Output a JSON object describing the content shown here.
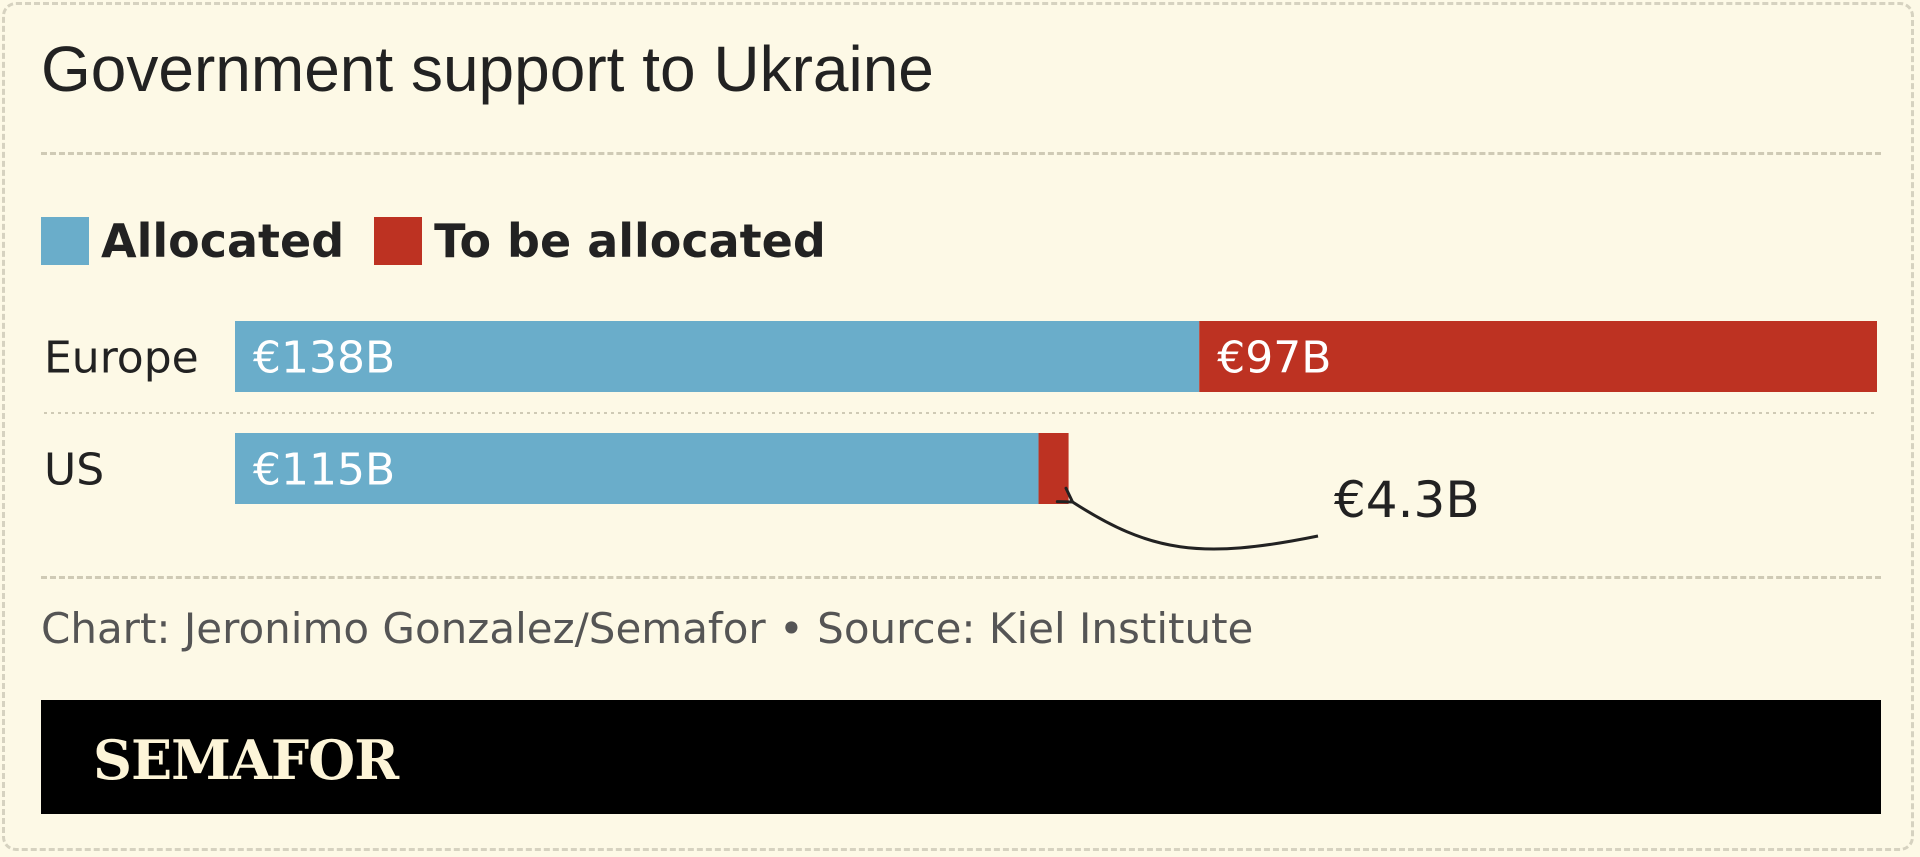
{
  "title": "Government support to Ukraine",
  "credit": "Chart: Jeronimo Gonzalez/Semafor • Source: Kiel Institute",
  "brand": "SEMAFOR",
  "colors": {
    "allocated": "#6aadca",
    "to_be_allocated": "#bd3222",
    "background": "#fdf9e6",
    "footer": "#000000"
  },
  "chart_data": {
    "type": "bar",
    "orientation": "horizontal",
    "stacked": true,
    "categories": [
      "Europe",
      "US"
    ],
    "series": [
      {
        "name": "Allocated",
        "values": [
          138,
          115
        ],
        "labels": [
          "€138B",
          "€115B"
        ]
      },
      {
        "name": "To be allocated",
        "values": [
          97,
          4.3
        ],
        "labels": [
          "€97B",
          "€4.3B"
        ]
      }
    ],
    "units": "€ billions",
    "annotation": "€4.3B",
    "legend_position": "top-left",
    "grid": false
  }
}
